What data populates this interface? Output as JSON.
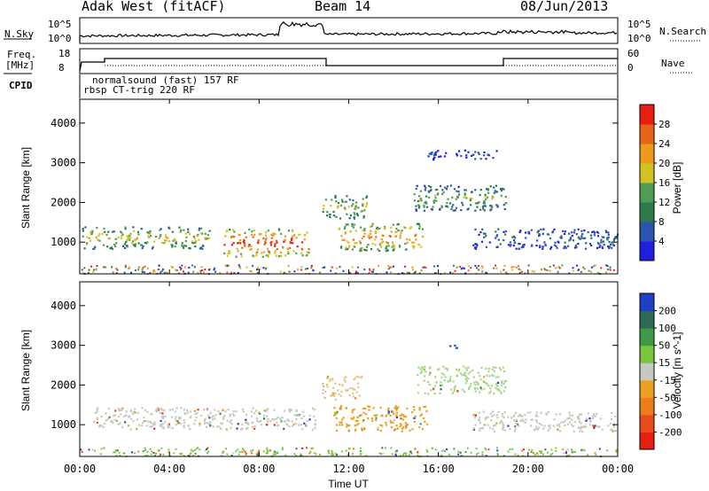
{
  "header": {
    "station": "Adak West (fitACF)",
    "beam": "Beam 14",
    "date": "08/Jun/2013"
  },
  "left_labels": {
    "nsky": "N.Sky",
    "freq_top": "Freq.",
    "freq_unit": "[MHz]",
    "cpid": "CPID"
  },
  "right_labels": {
    "nsearch": "N.Search",
    "nave": "Nave"
  },
  "nsky_ticks": [
    "10^5",
    "10^0"
  ],
  "freq_ticks": [
    "18",
    "8"
  ],
  "nave_ticks": [
    "60",
    "0"
  ],
  "cpid_lines": [
    "normalsound (fast) 157 RF",
    "rbsp CT-trig 220 RF"
  ],
  "chart_data": [
    {
      "type": "heatmap",
      "name": "Power",
      "ylabel": "Slant Range [km]",
      "xlabel": "Time UT",
      "x_ticks": [
        "00:00",
        "04:00",
        "08:00",
        "12:00",
        "16:00",
        "20:00",
        "00:00"
      ],
      "y_ticks": [
        "1000",
        "2000",
        "3000",
        "4000"
      ],
      "ylim": [
        200,
        4600
      ],
      "colorbar": {
        "label": "Power [dB]",
        "ticks": [
          "4",
          "8",
          "12",
          "16",
          "20",
          "24",
          "28"
        ],
        "colors": [
          "#1f1fe0",
          "#2b55b0",
          "#2e7a4a",
          "#4f9c55",
          "#d4c222",
          "#ef9a1e",
          "#e86418",
          "#e81e10"
        ]
      },
      "regions": [
        {
          "t0": 0.1,
          "t1": 5.8,
          "r0": 850,
          "r1": 1400,
          "level": 0.6
        },
        {
          "t0": 6.4,
          "t1": 10.2,
          "r0": 650,
          "r1": 1350,
          "level": 0.95
        },
        {
          "t0": 11.5,
          "t1": 15.3,
          "r0": 800,
          "r1": 1500,
          "level": 0.75
        },
        {
          "t0": 10.8,
          "t1": 12.8,
          "r0": 1600,
          "r1": 2200,
          "level": 0.55
        },
        {
          "t0": 14.8,
          "t1": 19.0,
          "r0": 1800,
          "r1": 2450,
          "level": 0.45
        },
        {
          "t0": 17.5,
          "t1": 24.0,
          "r0": 850,
          "r1": 1350,
          "level": 0.25
        },
        {
          "t0": 15.5,
          "t1": 18.6,
          "r0": 3100,
          "r1": 3350,
          "level": 0.08
        }
      ]
    },
    {
      "type": "heatmap",
      "name": "Velocity",
      "ylabel": "Slant Range [km]",
      "xlabel": "Time UT",
      "x_ticks": [
        "00:00",
        "04:00",
        "08:00",
        "12:00",
        "16:00",
        "20:00",
        "00:00"
      ],
      "y_ticks": [
        "1000",
        "2000",
        "3000",
        "4000"
      ],
      "ylim": [
        200,
        4600
      ],
      "colorbar": {
        "label": "Velocity [m s^-1]",
        "ticks": [
          "200",
          "100",
          "50",
          "15",
          "-15",
          "-50",
          "-100",
          "-200"
        ],
        "colors": [
          "#1f3fc8",
          "#2e6a55",
          "#3f9a45",
          "#77c83d",
          "#c8c8c0",
          "#eda020",
          "#ec7d1a",
          "#e84c18",
          "#e81e10"
        ]
      },
      "regions": [
        {
          "t0": 0.5,
          "t1": 10.5,
          "r0": 900,
          "r1": 1450,
          "color": "#c8c8c0"
        },
        {
          "t0": 11.3,
          "t1": 15.5,
          "r0": 850,
          "r1": 1500,
          "color": "#eda020"
        },
        {
          "t0": 10.8,
          "t1": 12.6,
          "r0": 1650,
          "r1": 2250,
          "color": "#e7c48a"
        },
        {
          "t0": 15.0,
          "t1": 19.0,
          "r0": 1800,
          "r1": 2500,
          "color": "#a7d68a"
        },
        {
          "t0": 17.5,
          "t1": 24.0,
          "r0": 850,
          "r1": 1350,
          "color": "#c8c8c0"
        },
        {
          "t0": 7.2,
          "t1": 8.5,
          "r0": 250,
          "r1": 380,
          "color": "#ec7d1a"
        },
        {
          "t0": 16.3,
          "t1": 16.8,
          "r0": 2900,
          "r1": 3050,
          "color": "#1f3fc8"
        }
      ]
    }
  ]
}
